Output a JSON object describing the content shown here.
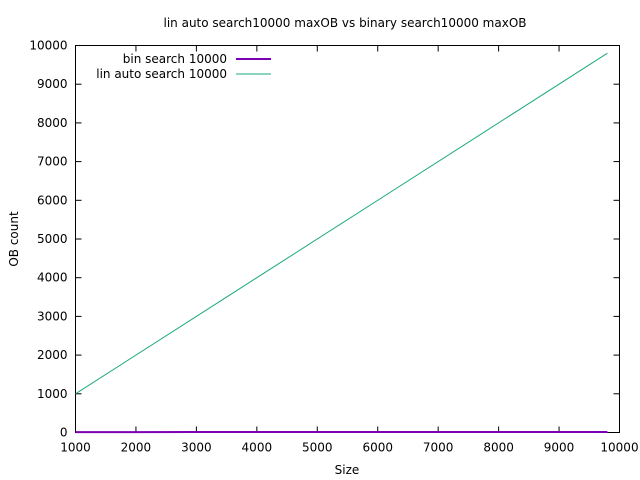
{
  "chart_data": {
    "type": "line",
    "title": "lin auto search10000 maxOB vs binary search10000 maxOB",
    "xlabel": "Size",
    "ylabel": "OB count",
    "xlim": [
      1000,
      10000
    ],
    "ylim": [
      0,
      10000
    ],
    "xticks": [
      1000,
      2000,
      3000,
      4000,
      5000,
      6000,
      7000,
      8000,
      9000,
      10000
    ],
    "yticks": [
      0,
      1000,
      2000,
      3000,
      4000,
      5000,
      6000,
      7000,
      8000,
      9000,
      10000
    ],
    "grid": false,
    "legend_position": "top-left",
    "series": [
      {
        "name": "bin search 10000",
        "color": "#7b00b4",
        "x": [
          1000,
          2000,
          3000,
          4000,
          5000,
          6000,
          7000,
          8000,
          9000,
          9800
        ],
        "y": [
          10,
          11,
          12,
          12,
          13,
          13,
          13,
          13,
          14,
          14
        ]
      },
      {
        "name": "lin auto search 10000",
        "color": "#1aa97f",
        "x": [
          1000,
          9800
        ],
        "y": [
          1000,
          9800
        ]
      }
    ]
  }
}
